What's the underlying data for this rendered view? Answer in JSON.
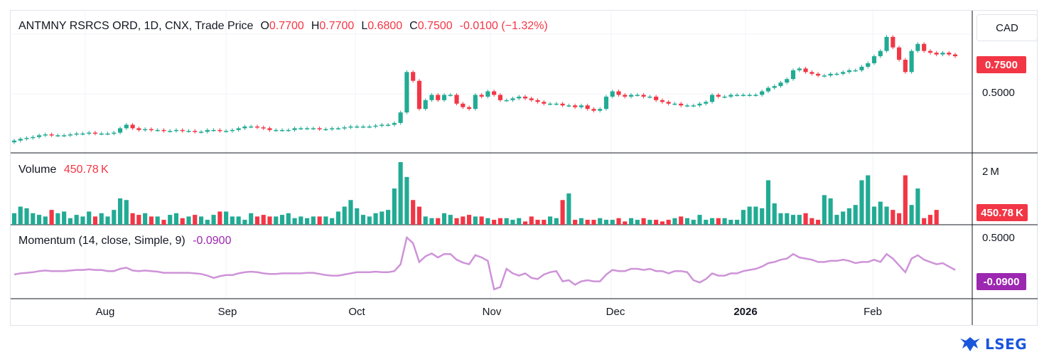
{
  "header": {
    "symbol": "ANTMNY RSRCS ORD, 1D, CNX, Trade Price",
    "o_label": "O",
    "o_value": "0.7700",
    "h_label": "H",
    "h_value": "0.7700",
    "l_label": "L",
    "l_value": "0.6800",
    "c_label": "C",
    "c_value": "0.7500",
    "change": "-0.0100 (−1.32%)"
  },
  "currency": "CAD",
  "last_price_tag": "0.7500",
  "price_axis": [
    "0.5000"
  ],
  "volume_pane": {
    "title": "Volume",
    "value": "450.78 K",
    "axis_label": "2 M",
    "tag": "450.78 K"
  },
  "momentum_pane": {
    "title": "Momentum (14, close, Simple, 9)",
    "value": "-0.0900",
    "axis_label": "0.5000",
    "tag": "-0.0900"
  },
  "x_axis": [
    "Aug",
    "Sep",
    "Oct",
    "Nov",
    "Dec",
    "2026",
    "Feb"
  ],
  "logo_text": "LSEG",
  "colors": {
    "up": "#22ab94",
    "down": "#f23645",
    "momentum": "#ce93d8",
    "momentum_tag": "#9c27b0"
  },
  "chart_data": {
    "type": "candlestick",
    "price_close": [
      0.27,
      0.28,
      0.285,
      0.29,
      0.3,
      0.305,
      0.3,
      0.3,
      0.3,
      0.305,
      0.31,
      0.31,
      0.315,
      0.31,
      0.31,
      0.31,
      0.315,
      0.34,
      0.36,
      0.34,
      0.33,
      0.335,
      0.33,
      0.33,
      0.325,
      0.325,
      0.33,
      0.325,
      0.325,
      0.32,
      0.32,
      0.33,
      0.33,
      0.325,
      0.325,
      0.33,
      0.34,
      0.35,
      0.35,
      0.345,
      0.34,
      0.33,
      0.33,
      0.33,
      0.33,
      0.34,
      0.34,
      0.34,
      0.34,
      0.335,
      0.335,
      0.34,
      0.34,
      0.345,
      0.35,
      0.35,
      0.35,
      0.35,
      0.355,
      0.36,
      0.36,
      0.37,
      0.43,
      0.66,
      0.61,
      0.45,
      0.5,
      0.53,
      0.5,
      0.53,
      0.53,
      0.48,
      0.46,
      0.45,
      0.53,
      0.52,
      0.55,
      0.53,
      0.5,
      0.5,
      0.51,
      0.52,
      0.51,
      0.5,
      0.49,
      0.48,
      0.48,
      0.48,
      0.47,
      0.47,
      0.46,
      0.47,
      0.45,
      0.44,
      0.45,
      0.52,
      0.55,
      0.53,
      0.52,
      0.53,
      0.53,
      0.52,
      0.52,
      0.5,
      0.49,
      0.48,
      0.48,
      0.47,
      0.47,
      0.47,
      0.48,
      0.49,
      0.53,
      0.52,
      0.52,
      0.53,
      0.53,
      0.53,
      0.53,
      0.53,
      0.55,
      0.57,
      0.58,
      0.6,
      0.62,
      0.67,
      0.68,
      0.66,
      0.65,
      0.64,
      0.64,
      0.65,
      0.65,
      0.66,
      0.67,
      0.67,
      0.69,
      0.71,
      0.75,
      0.78,
      0.86,
      0.8,
      0.73,
      0.66,
      0.78,
      0.82,
      0.78,
      0.77,
      0.76,
      0.77,
      0.76,
      0.75
    ],
    "volume": [
      0.35,
      0.55,
      0.5,
      0.35,
      0.3,
      0.25,
      0.45,
      0.35,
      0.4,
      0.2,
      0.3,
      0.25,
      0.4,
      0.25,
      0.35,
      0.25,
      0.45,
      0.8,
      0.75,
      0.35,
      0.3,
      0.35,
      0.25,
      0.25,
      0.15,
      0.3,
      0.35,
      0.2,
      0.25,
      0.3,
      0.25,
      0.15,
      0.3,
      0.4,
      0.4,
      0.25,
      0.25,
      0.15,
      0.35,
      0.25,
      0.3,
      0.25,
      0.25,
      0.3,
      0.35,
      0.2,
      0.25,
      0.2,
      0.25,
      0.25,
      0.25,
      0.2,
      0.4,
      0.55,
      0.75,
      0.5,
      0.3,
      0.25,
      0.35,
      0.4,
      0.45,
      1.1,
      1.9,
      1.45,
      0.75,
      0.55,
      0.25,
      0.2,
      0.2,
      0.35,
      0.3,
      0.2,
      0.25,
      0.3,
      0.25,
      0.25,
      0.2,
      0.15,
      0.2,
      0.2,
      0.15,
      0.2,
      0.1,
      0.25,
      0.15,
      0.15,
      0.25,
      0.2,
      0.75,
      0.95,
      0.15,
      0.2,
      0.15,
      0.15,
      0.2,
      0.15,
      0.15,
      0.2,
      0.1,
      0.2,
      0.15,
      0.2,
      0.15,
      0.15,
      0.1,
      0.15,
      0.2,
      0.25,
      0.2,
      0.15,
      0.3,
      0.15,
      0.2,
      0.2,
      0.2,
      0.15,
      0.15,
      0.45,
      0.55,
      0.55,
      0.5,
      1.35,
      0.65,
      0.35,
      0.35,
      0.3,
      0.3,
      0.35,
      0.2,
      0.15,
      0.9,
      0.8,
      0.3,
      0.4,
      0.5,
      0.6,
      1.35,
      1.5,
      0.55,
      0.7,
      0.55,
      0.45,
      0.35,
      1.5,
      0.6,
      1.1,
      0.2,
      0.3,
      0.45
    ]
  }
}
